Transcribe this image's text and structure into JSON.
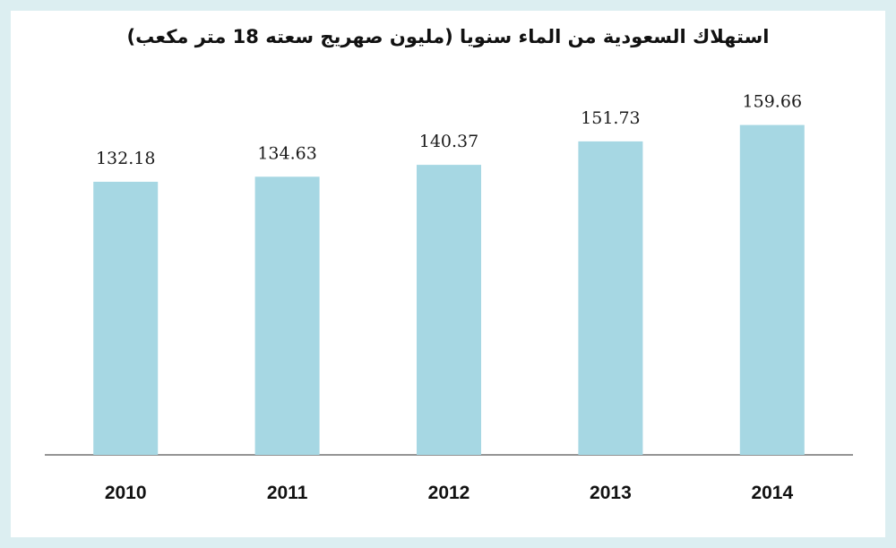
{
  "chart_data": {
    "type": "bar",
    "title": "استهلاك السعودية من الماء سنويا (مليون صهريج سعته 18 متر مكعب)",
    "xlabel": "",
    "ylabel": "",
    "categories": [
      "2010",
      "2011",
      "2012",
      "2013",
      "2014"
    ],
    "values": [
      132.18,
      134.63,
      140.37,
      151.73,
      159.66
    ],
    "data_labels": [
      "132.18",
      "134.63",
      "140.37",
      "151.73",
      "159.66"
    ],
    "ylim": [
      0,
      200
    ],
    "grid": false,
    "legend": "none",
    "colors": {
      "bar": "#a6d7e3",
      "axis": "#555555",
      "frame": "#dceef1"
    }
  }
}
